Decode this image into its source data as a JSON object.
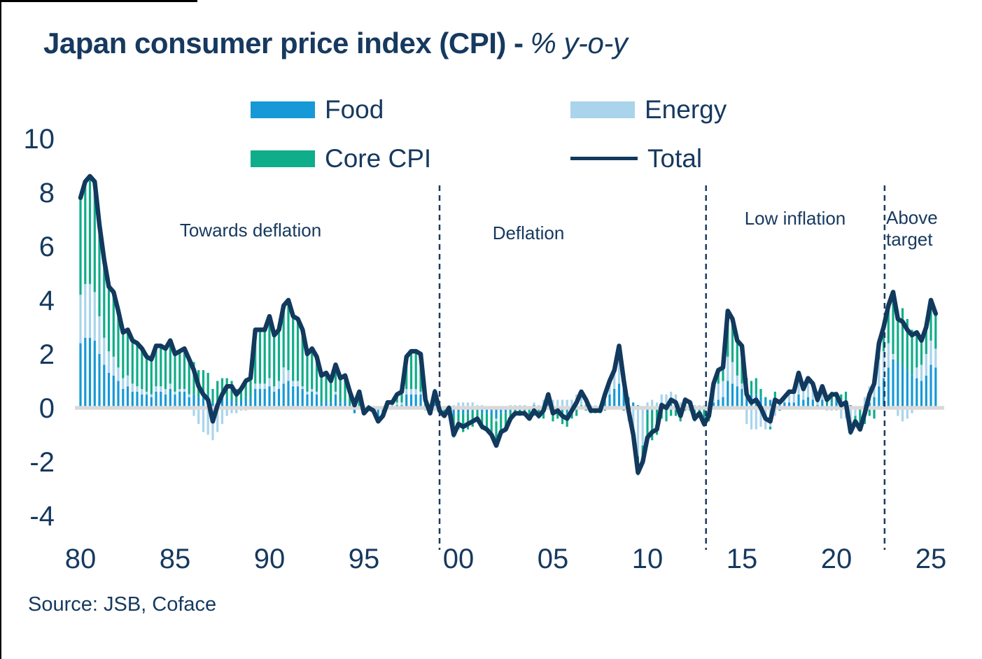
{
  "header": {
    "title_main": "Japan consumer price index (CPI) -",
    "title_sub": "% y-o-y"
  },
  "legend": {
    "items": [
      {
        "label": "Food",
        "color": "#1699D6",
        "type": "bar"
      },
      {
        "label": "Energy",
        "color": "#A9D4EC",
        "type": "bar"
      },
      {
        "label": "Core CPI",
        "color": "#0FAD89",
        "type": "bar"
      },
      {
        "label": "Total",
        "color": "#12395E",
        "type": "line"
      }
    ]
  },
  "annotations": [
    {
      "text": "Towards deflation",
      "align": "center"
    },
    {
      "text": "Deflation",
      "align": "center"
    },
    {
      "text": "Low inflation",
      "align": "center"
    },
    {
      "text": "Above\ntarget",
      "align": "left"
    }
  ],
  "axes": {
    "y_ticks": [
      {
        "label": "10",
        "value": 10
      },
      {
        "label": "8",
        "value": 8
      },
      {
        "label": "6",
        "value": 6
      },
      {
        "label": "4",
        "value": 4
      },
      {
        "label": "2",
        "value": 2
      },
      {
        "label": "0",
        "value": 0
      },
      {
        "label": "-2",
        "value": -2
      },
      {
        "label": "-4",
        "value": -4
      }
    ],
    "x_ticks": [
      {
        "label": "80",
        "year": 1980
      },
      {
        "label": "85",
        "year": 1985
      },
      {
        "label": "90",
        "year": 1990
      },
      {
        "label": "95",
        "year": 1995
      },
      {
        "label": "00",
        "year": 2000
      },
      {
        "label": "05",
        "year": 2005
      },
      {
        "label": "10",
        "year": 2010
      },
      {
        "label": "15",
        "year": 2015
      },
      {
        "label": "20",
        "year": 2020
      },
      {
        "label": "25",
        "year": 2025
      }
    ]
  },
  "source": {
    "text": "Source: JSB, Coface"
  },
  "colors": {
    "navy_text": "#16395F",
    "food": "#1699D6",
    "energy": "#A9D4EC",
    "core": "#0FAD89",
    "total_line": "#12395E",
    "zero_line": "#D9D9D9",
    "dashed_line": "#1B3A5F"
  },
  "chart_data": {
    "type": "stacked-bar+line",
    "title": "Japan consumer price index (CPI) - % y-o-y",
    "xlabel": "",
    "ylabel": "% y-o-y",
    "ylim": [
      -4,
      10
    ],
    "grid": false,
    "legend_position": "top",
    "x_start_year": 1980,
    "x_interval_years": 0.25,
    "dashed_lines_years": [
      1999.0,
      2013.1,
      2022.55
    ],
    "region_labels": [
      {
        "text": "Towards deflation",
        "center_year": 1989.0
      },
      {
        "text": "Deflation",
        "center_year": 2003.7
      },
      {
        "text": "Low inflation",
        "center_year": 2017.8
      },
      {
        "text": "Above target",
        "center_year": 2023.6
      }
    ],
    "series": [
      {
        "name": "Food",
        "type": "bar",
        "color": "#1699D6",
        "values": [
          2.4,
          2.6,
          2.6,
          2.5,
          2.0,
          1.6,
          1.3,
          1.2,
          1.0,
          0.7,
          0.8,
          0.6,
          0.6,
          0.5,
          0.5,
          0.4,
          0.6,
          0.6,
          0.5,
          0.7,
          0.5,
          0.6,
          0.6,
          0.4,
          0.5,
          0.4,
          0.4,
          0.5,
          0.2,
          0.3,
          0.4,
          0.4,
          0.3,
          0.2,
          0.3,
          0.4,
          0.4,
          0.7,
          0.7,
          0.7,
          0.8,
          0.6,
          0.7,
          0.9,
          1.0,
          0.8,
          0.8,
          0.7,
          0.5,
          0.6,
          0.5,
          0.2,
          0.3,
          0.2,
          0.5,
          0.2,
          0.3,
          0.1,
          -0.2,
          0.1,
          -0.2,
          -0.1,
          -0.1,
          -0.3,
          -0.2,
          0.0,
          0.0,
          0.1,
          0.1,
          0.5,
          0.5,
          0.5,
          0.5,
          0.1,
          0.0,
          0.2,
          0.0,
          -0.1,
          0.0,
          -0.3,
          -0.2,
          -0.2,
          -0.2,
          -0.1,
          -0.1,
          -0.2,
          -0.2,
          -0.3,
          -0.4,
          -0.2,
          -0.2,
          -0.1,
          0.0,
          0.0,
          -0.1,
          -0.1,
          0.1,
          0.0,
          0.1,
          0.3,
          -0.1,
          0.0,
          -0.1,
          -0.2,
          0.0,
          0.1,
          0.1,
          0.1,
          0.0,
          0.0,
          0.1,
          0.3,
          0.5,
          0.7,
          0.9,
          0.8,
          0.4,
          0.2,
          0.1,
          0.0,
          -0.2,
          -0.1,
          0.0,
          0.2,
          0.1,
          0.2,
          0.2,
          0.0,
          0.1,
          0.1,
          -0.1,
          0.0,
          -0.1,
          0.0,
          0.2,
          0.3,
          0.4,
          1.0,
          0.9,
          0.8,
          0.7,
          0.5,
          0.5,
          0.5,
          0.4,
          0.3,
          0.3,
          0.3,
          0.1,
          0.2,
          0.2,
          0.2,
          0.5,
          0.3,
          0.4,
          0.3,
          0.1,
          0.3,
          0.1,
          0.2,
          0.3,
          0.3,
          0.3,
          0.1,
          0.0,
          0.0,
          0.1,
          0.2,
          0.4,
          0.8,
          1.1,
          1.5,
          1.8,
          1.7,
          1.6,
          1.4,
          1.2,
          1.1,
          1.0,
          1.2,
          1.6,
          1.5
        ]
      },
      {
        "name": "Energy",
        "type": "bar",
        "color": "#A9D4EC",
        "values": [
          1.8,
          2.0,
          2.0,
          1.8,
          1.4,
          1.0,
          0.8,
          0.7,
          0.5,
          0.4,
          0.4,
          0.3,
          0.2,
          0.2,
          0.1,
          0.1,
          0.2,
          0.2,
          0.2,
          0.2,
          0.1,
          0.1,
          0.1,
          0.1,
          -0.3,
          -0.6,
          -0.9,
          -1.0,
          -1.2,
          -0.9,
          -0.6,
          -0.3,
          -0.2,
          -0.2,
          -0.1,
          -0.1,
          0.0,
          0.2,
          0.2,
          0.2,
          0.3,
          0.2,
          0.3,
          0.6,
          0.4,
          0.2,
          0.2,
          0.1,
          0.1,
          0.1,
          0.1,
          0.0,
          0.0,
          0.0,
          0.1,
          0.0,
          0.0,
          0.0,
          0.0,
          0.0,
          0.0,
          0.0,
          0.0,
          0.0,
          0.0,
          0.1,
          0.1,
          0.1,
          0.1,
          0.2,
          0.2,
          0.2,
          0.1,
          -0.1,
          -0.2,
          -0.1,
          -0.1,
          0.0,
          0.1,
          0.1,
          0.2,
          0.2,
          0.2,
          0.2,
          0.1,
          0.1,
          0.0,
          0.0,
          -0.1,
          0.0,
          0.0,
          0.1,
          0.1,
          0.1,
          0.1,
          0.0,
          0.1,
          0.1,
          0.2,
          0.2,
          0.3,
          0.3,
          0.3,
          0.3,
          0.3,
          0.4,
          0.5,
          0.3,
          0.1,
          0.1,
          0.0,
          0.3,
          0.5,
          0.7,
          1.2,
          0.3,
          -0.5,
          -1.0,
          -1.8,
          -1.4,
          0.2,
          0.3,
          0.2,
          0.3,
          0.4,
          0.4,
          0.3,
          0.2,
          0.3,
          0.2,
          0.1,
          0.1,
          0.1,
          0.2,
          0.5,
          0.6,
          0.6,
          0.9,
          0.8,
          0.4,
          0.2,
          -0.6,
          -0.8,
          -0.8,
          -0.7,
          -0.8,
          -0.7,
          -0.3,
          0.2,
          0.2,
          0.3,
          0.4,
          0.5,
          0.4,
          0.5,
          0.5,
          0.1,
          0.2,
          -0.1,
          -0.1,
          -0.1,
          -0.4,
          -0.4,
          -0.5,
          -0.3,
          0.0,
          0.3,
          0.6,
          0.9,
          1.0,
          1.0,
          0.9,
          0.2,
          -0.3,
          -0.5,
          -0.4,
          -0.2,
          0.4,
          0.6,
          0.8,
          0.9,
          0.7
        ]
      },
      {
        "name": "Core CPI",
        "type": "bar",
        "color": "#0FAD89",
        "values": [
          3.6,
          3.8,
          4.0,
          4.1,
          3.4,
          2.9,
          2.4,
          2.4,
          2.1,
          1.7,
          1.7,
          1.6,
          1.6,
          1.5,
          1.3,
          1.3,
          1.5,
          1.5,
          1.5,
          1.6,
          1.4,
          1.4,
          1.5,
          1.3,
          1.2,
          1.0,
          1.0,
          0.8,
          0.5,
          0.7,
          0.7,
          0.7,
          0.7,
          0.5,
          0.5,
          0.7,
          0.7,
          2.0,
          2.0,
          2.0,
          2.3,
          1.9,
          1.9,
          2.3,
          2.6,
          2.4,
          2.3,
          2.1,
          1.4,
          1.5,
          1.3,
          1.0,
          1.0,
          0.8,
          1.0,
          0.9,
          0.9,
          0.5,
          0.3,
          0.5,
          0.0,
          0.1,
          0.0,
          -0.2,
          -0.1,
          0.1,
          0.1,
          0.3,
          0.4,
          1.2,
          1.4,
          1.4,
          1.4,
          0.3,
          0.0,
          0.5,
          0.0,
          -0.2,
          -0.1,
          -0.8,
          -0.6,
          -0.7,
          -0.6,
          -0.6,
          -0.4,
          -0.6,
          -0.6,
          -0.7,
          -0.9,
          -0.7,
          -0.6,
          -0.4,
          -0.3,
          -0.3,
          -0.2,
          -0.3,
          -0.3,
          -0.4,
          -0.4,
          0.0,
          -0.4,
          -0.4,
          -0.5,
          -0.5,
          -0.4,
          -0.3,
          0.0,
          -0.1,
          -0.2,
          -0.2,
          -0.2,
          -0.1,
          0.0,
          0.0,
          0.2,
          -0.1,
          0.0,
          -0.2,
          -0.7,
          -0.6,
          -1.1,
          -1.1,
          -1.0,
          -0.4,
          -0.5,
          -0.3,
          -0.3,
          -0.5,
          -0.1,
          -0.1,
          -0.4,
          -0.3,
          -0.6,
          -0.5,
          0.2,
          0.5,
          0.5,
          1.7,
          1.6,
          1.3,
          1.4,
          0.6,
          0.5,
          0.6,
          0.3,
          0.1,
          -0.1,
          0.3,
          -0.1,
          0.0,
          0.1,
          0.0,
          0.3,
          0.0,
          0.2,
          0.1,
          0.1,
          0.3,
          0.3,
          0.4,
          0.3,
          0.2,
          0.3,
          -0.5,
          -0.2,
          -0.8,
          -0.6,
          -0.3,
          -0.4,
          0.6,
          0.9,
          1.4,
          2.3,
          1.9,
          2.1,
          1.9,
          1.7,
          1.3,
          0.9,
          1.0,
          1.5,
          1.3
        ]
      },
      {
        "name": "Total",
        "type": "line",
        "color": "#12395E",
        "values": [
          7.8,
          8.4,
          8.6,
          8.4,
          6.8,
          5.5,
          4.5,
          4.3,
          3.6,
          2.8,
          2.9,
          2.5,
          2.4,
          2.2,
          1.9,
          1.8,
          2.3,
          2.3,
          2.2,
          2.5,
          2.0,
          2.1,
          2.2,
          1.8,
          1.4,
          0.8,
          0.5,
          0.3,
          -0.5,
          0.1,
          0.5,
          0.8,
          0.8,
          0.5,
          0.7,
          1.0,
          1.1,
          2.9,
          2.9,
          2.9,
          3.4,
          2.7,
          2.9,
          3.8,
          4.0,
          3.4,
          3.3,
          2.9,
          2.0,
          2.2,
          1.9,
          1.2,
          1.3,
          1.0,
          1.6,
          1.1,
          1.2,
          0.6,
          0.1,
          0.6,
          -0.2,
          0.0,
          -0.1,
          -0.5,
          -0.3,
          0.2,
          0.2,
          0.5,
          0.6,
          1.9,
          2.1,
          2.1,
          2.0,
          0.3,
          -0.2,
          0.6,
          -0.1,
          -0.3,
          0.0,
          -1.0,
          -0.6,
          -0.7,
          -0.6,
          -0.5,
          -0.4,
          -0.7,
          -0.8,
          -1.0,
          -1.4,
          -0.9,
          -0.8,
          -0.4,
          -0.2,
          -0.2,
          -0.2,
          -0.4,
          -0.1,
          -0.3,
          -0.1,
          0.5,
          -0.2,
          -0.1,
          -0.3,
          -0.4,
          -0.1,
          0.2,
          0.6,
          0.3,
          -0.1,
          -0.1,
          -0.1,
          0.5,
          1.0,
          1.4,
          2.3,
          1.0,
          -0.1,
          -1.0,
          -2.4,
          -2.0,
          -1.1,
          -0.9,
          -0.8,
          0.1,
          0.0,
          0.3,
          0.2,
          -0.3,
          0.3,
          0.2,
          -0.4,
          -0.2,
          -0.6,
          -0.3,
          0.9,
          1.4,
          1.5,
          3.6,
          3.3,
          2.5,
          2.3,
          0.5,
          0.2,
          0.3,
          0.0,
          -0.4,
          -0.5,
          0.3,
          0.2,
          0.4,
          0.6,
          0.6,
          1.3,
          0.7,
          1.1,
          0.9,
          0.3,
          0.8,
          0.3,
          0.5,
          0.5,
          0.1,
          0.2,
          -0.9,
          -0.5,
          -0.8,
          -0.2,
          0.5,
          0.9,
          2.4,
          3.0,
          3.8,
          4.3,
          3.3,
          3.2,
          2.9,
          2.7,
          2.8,
          2.5,
          3.0,
          4.0,
          3.5
        ]
      }
    ]
  }
}
